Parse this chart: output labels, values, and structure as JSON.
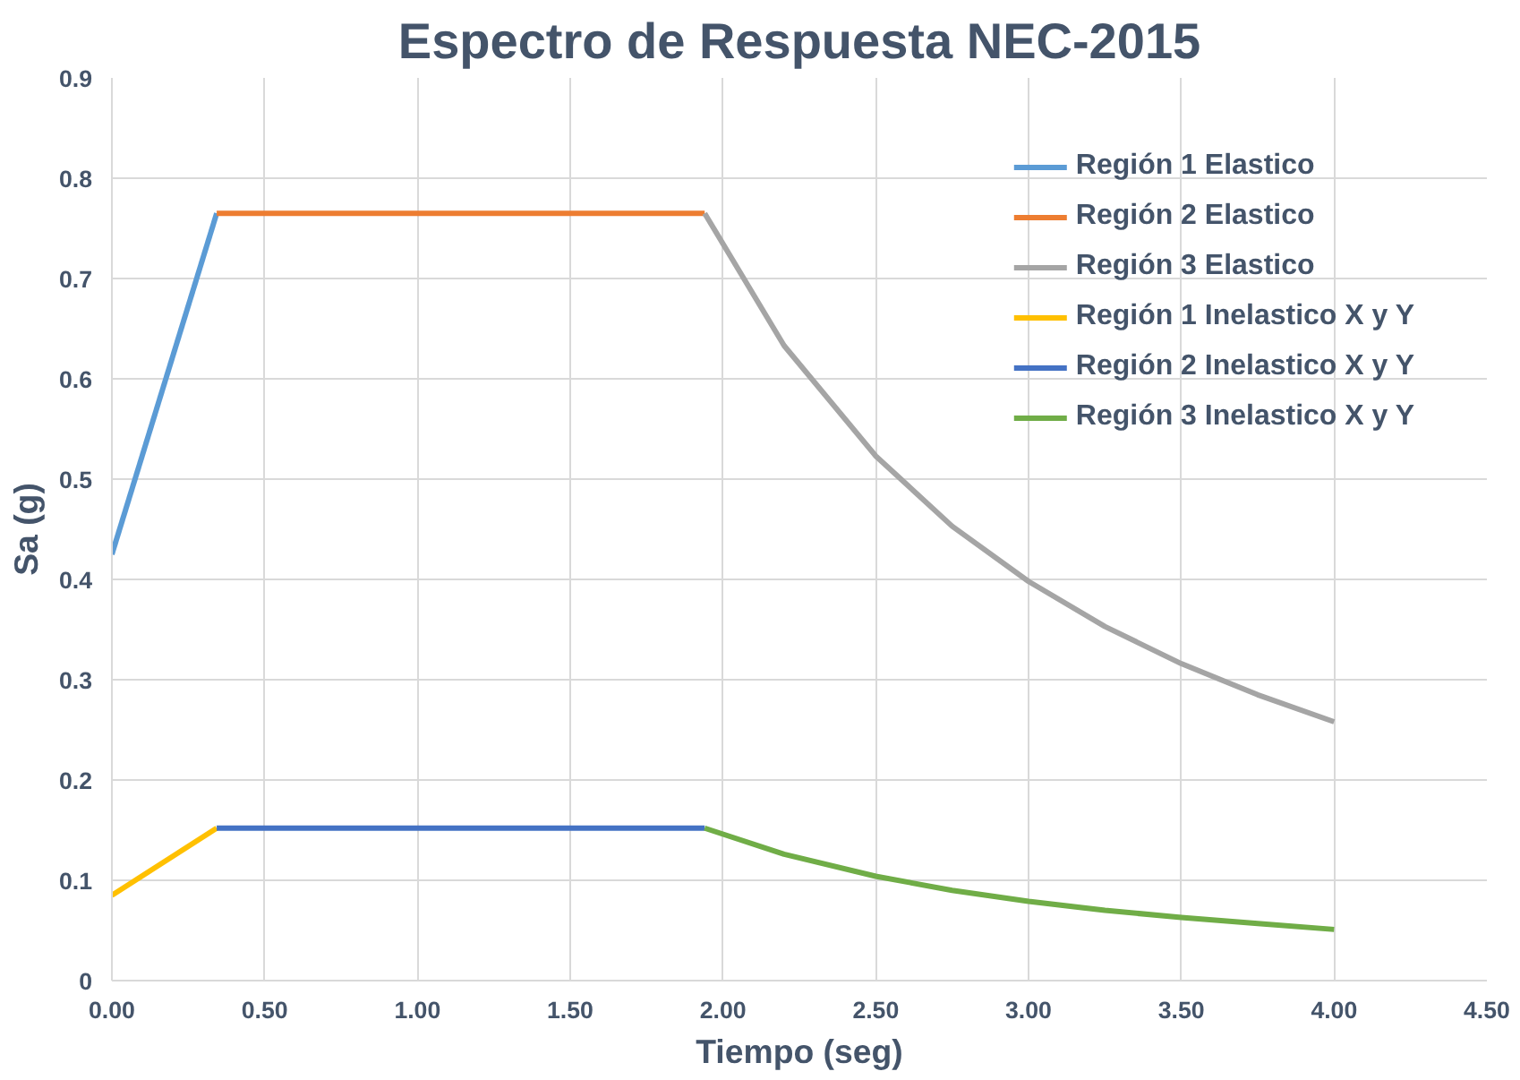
{
  "chart_data": {
    "type": "line",
    "title": "Espectro de Respuesta NEC-2015",
    "xlabel": "Tiempo (seg)",
    "ylabel": "Sa (g)",
    "xlim": [
      0,
      4.5
    ],
    "ylim": [
      0,
      0.9
    ],
    "xticks": [
      {
        "value": 0,
        "label": "0.00"
      },
      {
        "value": 0.5,
        "label": "0.50"
      },
      {
        "value": 1,
        "label": "1.00"
      },
      {
        "value": 1.5,
        "label": "1.50"
      },
      {
        "value": 2,
        "label": "2.00"
      },
      {
        "value": 2.5,
        "label": "2.50"
      },
      {
        "value": 3,
        "label": "3.00"
      },
      {
        "value": 3.5,
        "label": "3.50"
      },
      {
        "value": 4,
        "label": "4.00"
      },
      {
        "value": 4.5,
        "label": "4.50"
      }
    ],
    "yticks": [
      0,
      0.1,
      0.2,
      0.3,
      0.4,
      0.5,
      0.6,
      0.7,
      0.8,
      0.9
    ],
    "grid": true,
    "legend": "top right",
    "marker": "none",
    "line_style": "solid",
    "series": [
      {
        "name": "Región 1 Elastico",
        "color": "#5b9bd5",
        "x": [
          0,
          0.343
        ],
        "values": [
          0.425,
          0.765
        ]
      },
      {
        "name": "Región 2 Elastico",
        "color": "#ed7d31",
        "x": [
          0.343,
          1.94
        ],
        "values": [
          0.765,
          0.765
        ]
      },
      {
        "name": "Región 3 Elastico",
        "color": "#a5a5a5",
        "x": [
          1.94,
          2.2,
          2.5,
          2.75,
          3.0,
          3.25,
          3.5,
          3.75,
          4.0
        ],
        "values": [
          0.765,
          0.633,
          0.523,
          0.453,
          0.398,
          0.353,
          0.316,
          0.285,
          0.258
        ]
      },
      {
        "name": "Región 1 Inelastico X y Y",
        "color": "#ffc000",
        "x": [
          0,
          0.343
        ],
        "values": [
          0.085,
          0.152
        ]
      },
      {
        "name": "Región 2 Inelastico X y Y",
        "color": "#4472c4",
        "x": [
          0.343,
          1.94
        ],
        "values": [
          0.152,
          0.152
        ]
      },
      {
        "name": "Región 3 Inelastico X y Y",
        "color": "#70ad47",
        "x": [
          1.94,
          2.2,
          2.5,
          2.75,
          3.0,
          3.25,
          3.5,
          3.75,
          4.0
        ],
        "values": [
          0.152,
          0.126,
          0.104,
          0.09,
          0.079,
          0.07,
          0.063,
          0.057,
          0.051
        ]
      }
    ]
  }
}
